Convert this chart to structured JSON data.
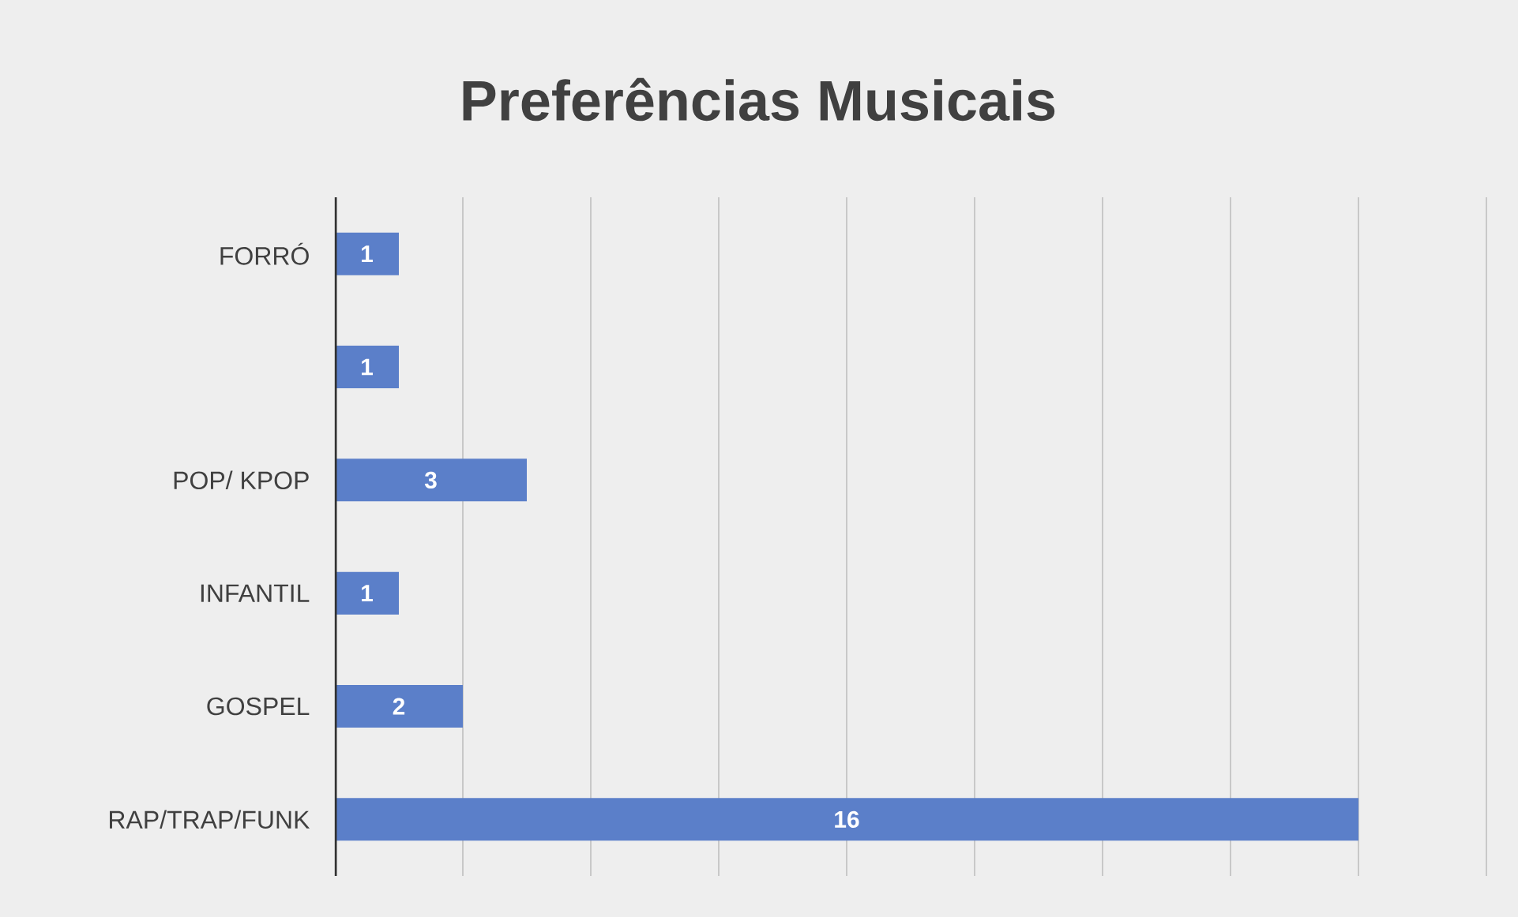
{
  "chart_data": {
    "type": "bar",
    "orientation": "horizontal",
    "title": "Preferências Musicais",
    "categories": [
      "FORRÓ",
      null,
      "POP/ KPOP",
      "INFANTIL",
      "GOSPEL",
      "RAP/TRAP/FUNK"
    ],
    "values": [
      1,
      1,
      3,
      1,
      2,
      16
    ],
    "color": "#5b7fc9",
    "xlim": [
      0,
      18
    ],
    "xticks": [
      {
        "value": 0,
        "label": null
      },
      {
        "value": 2,
        "label": null
      },
      {
        "value": 4,
        "label": null
      },
      {
        "value": 6,
        "label": null
      },
      {
        "value": 8,
        "label": null
      },
      {
        "value": 10,
        "label": null
      },
      {
        "value": 12,
        "label": null
      },
      {
        "value": 14,
        "label": null
      },
      {
        "value": 16,
        "label": null
      },
      {
        "value": 18,
        "label": null
      }
    ],
    "tick_labels": "y",
    "grid": "x",
    "data_labels": true
  }
}
